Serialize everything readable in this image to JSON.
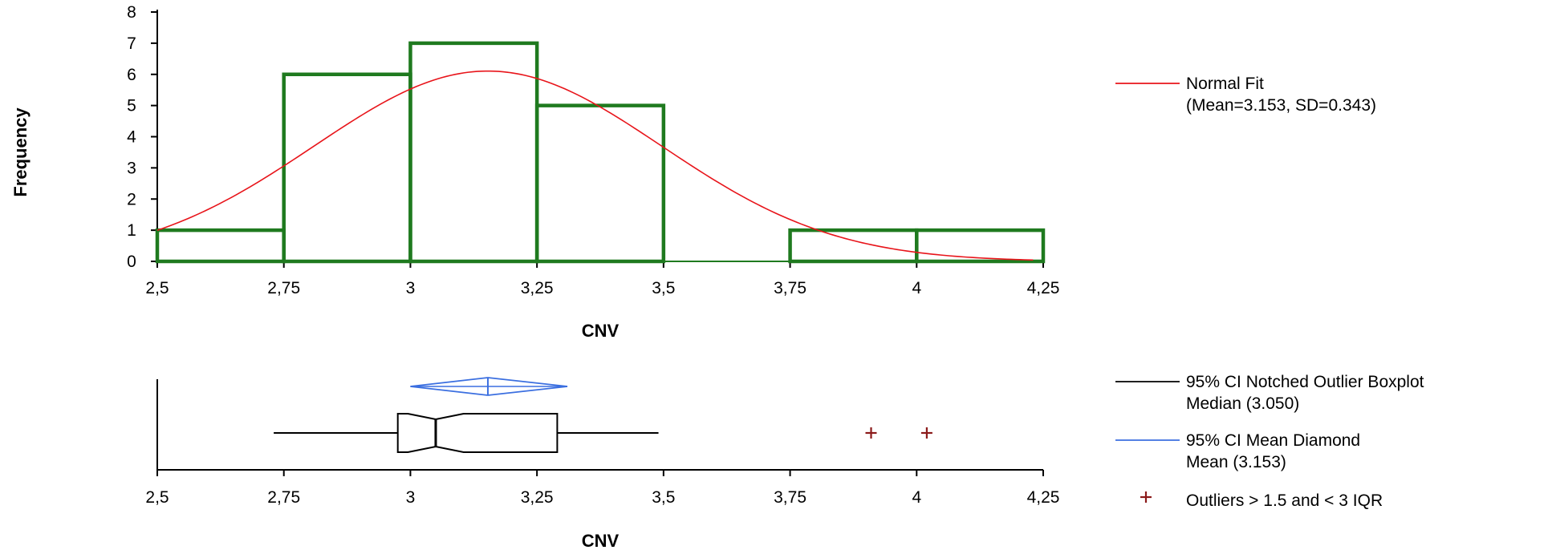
{
  "chart_data": [
    {
      "type": "bar",
      "subtype": "histogram",
      "xlabel": "CNV",
      "ylabel": "Frequency",
      "xlim": [
        2.5,
        4.25
      ],
      "ylim": [
        0,
        8
      ],
      "x_ticks": [
        "2,5",
        "2,75",
        "3",
        "3,25",
        "3,5",
        "3,75",
        "4",
        "4,25"
      ],
      "x_tick_values": [
        2.5,
        2.75,
        3,
        3.25,
        3.5,
        3.75,
        4,
        4.25
      ],
      "y_ticks": [
        "0",
        "1",
        "2",
        "3",
        "4",
        "5",
        "6",
        "7",
        "8"
      ],
      "y_tick_values": [
        0,
        1,
        2,
        3,
        4,
        5,
        6,
        7,
        8
      ],
      "bins": [
        {
          "from": 2.5,
          "to": 2.75,
          "count": 1
        },
        {
          "from": 2.75,
          "to": 3.0,
          "count": 6
        },
        {
          "from": 3.0,
          "to": 3.25,
          "count": 7
        },
        {
          "from": 3.25,
          "to": 3.5,
          "count": 5
        },
        {
          "from": 3.5,
          "to": 3.75,
          "count": 0
        },
        {
          "from": 3.75,
          "to": 4.0,
          "count": 1
        },
        {
          "from": 4.0,
          "to": 4.25,
          "count": 1
        }
      ],
      "normal_fit": {
        "mean": 3.153,
        "sd": 0.343,
        "color": "#e8141a"
      },
      "bar_color": "#1f7a1f",
      "grid": false
    },
    {
      "type": "boxplot",
      "xlabel": "CNV",
      "xlim": [
        2.5,
        4.25
      ],
      "x_ticks": [
        "2,5",
        "2,75",
        "3",
        "3,25",
        "3,5",
        "3,75",
        "4",
        "4,25"
      ],
      "x_tick_values": [
        2.5,
        2.75,
        3,
        3.25,
        3.5,
        3.75,
        4,
        4.25
      ],
      "whisker_low": 2.73,
      "q1": 2.975,
      "notch_low": 3.05,
      "median": 3.05,
      "notch_high": 3.05,
      "q3": 3.29,
      "whisker_high": 3.49,
      "notch_ci": [
        2.995,
        3.105
      ],
      "mean": 3.153,
      "mean_ci": [
        3.0,
        3.31
      ],
      "outliers": [
        3.91,
        4.02
      ],
      "box_color": "#000000",
      "diamond_color": "#3b6fe0",
      "outlier_color": "#8b1a1a"
    }
  ],
  "legend": [
    {
      "line1": "Normal Fit",
      "line2": "(Mean=3.153, SD=0.343)",
      "color": "#e8141a",
      "symbol": "line"
    },
    {
      "line1": "95% CI Notched Outlier Boxplot",
      "line2": "Median (3.050)",
      "color": "#000000",
      "symbol": "line"
    },
    {
      "line1": "95% CI Mean Diamond",
      "line2": "Mean (3.153)",
      "color": "#3b6fe0",
      "symbol": "line"
    },
    {
      "line1": "Outliers > 1.5 and < 3 IQR",
      "line2": "",
      "color": "#8b1a1a",
      "symbol": "+"
    }
  ],
  "legend_position": "right"
}
